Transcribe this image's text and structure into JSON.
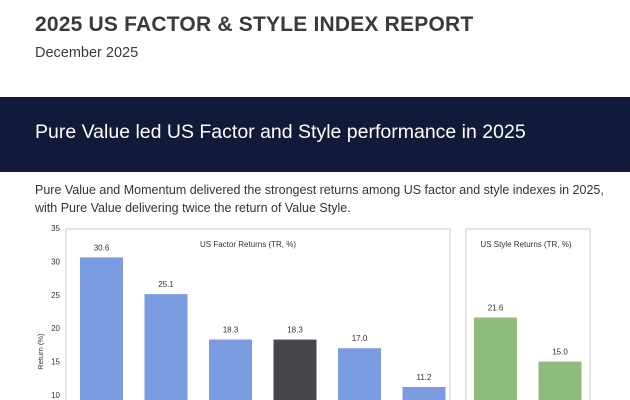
{
  "header": {
    "title": "2025 US FACTOR & STYLE INDEX REPORT",
    "date": "December 2025"
  },
  "banner": {
    "title": "Pure Value led US Factor and Style performance in 2025"
  },
  "summary": {
    "line1": "Pure Value and Momentum delivered the strongest returns among US factor and style indexes in 2025,",
    "line2": "with Pure Value delivering twice the return of Value Style."
  },
  "colors": {
    "banner": "#121a3a",
    "factor_bar": "#7b9be0",
    "factor_highlight": "#45474d",
    "style_bar": "#8fbc7c"
  },
  "chart_data": [
    {
      "type": "bar",
      "title": "US Factor Returns (TR, %)",
      "ylabel": "Return (%)",
      "ylim": [
        10,
        35
      ],
      "yticks": [
        10,
        15,
        20,
        25,
        30,
        35
      ],
      "values": [
        30.6,
        25.1,
        18.3,
        18.3,
        17.0,
        11.2
      ],
      "bar_colors": [
        "#7b9be0",
        "#7b9be0",
        "#7b9be0",
        "#45474d",
        "#7b9be0",
        "#7b9be0"
      ]
    },
    {
      "type": "bar",
      "title": "US Style Returns (TR, %)",
      "values": [
        21.6,
        15.0
      ],
      "bar_colors": [
        "#8fbc7c",
        "#8fbc7c"
      ]
    }
  ]
}
